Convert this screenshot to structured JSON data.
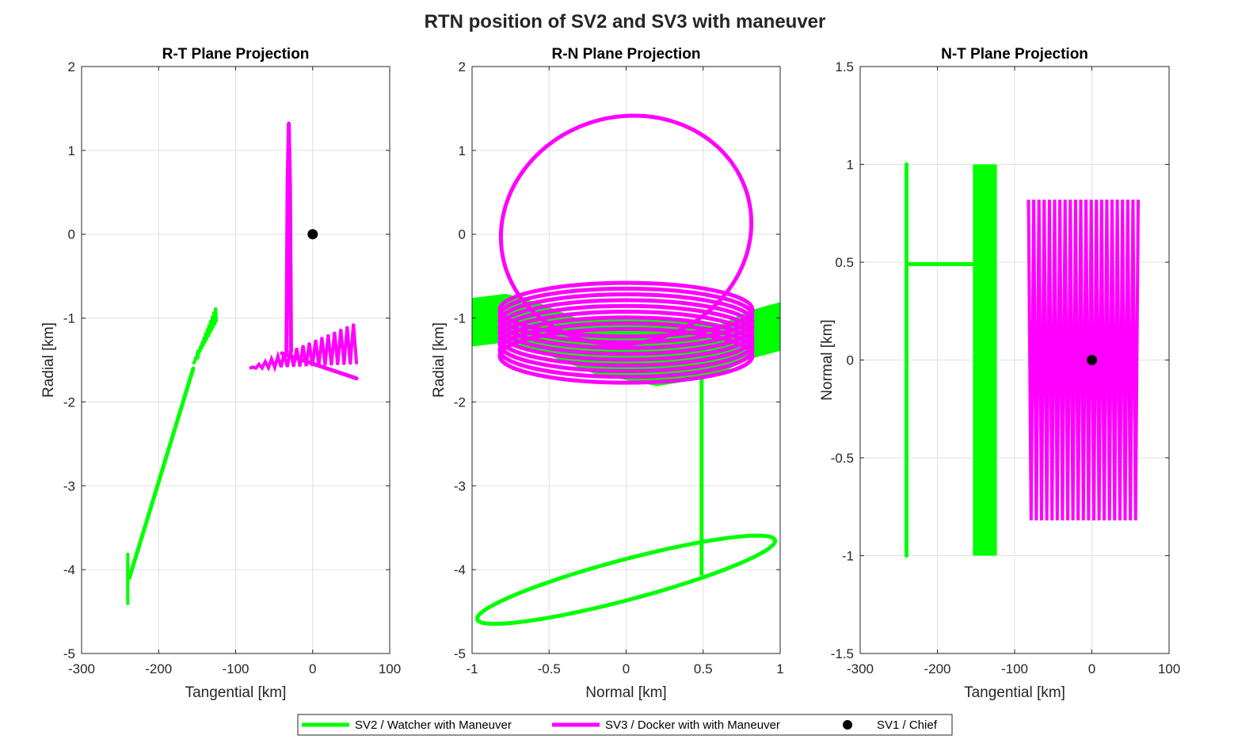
{
  "figure": {
    "title": "RTN position of SV2 and SV3 with maneuver"
  },
  "colors": {
    "sv2": "#00ff00",
    "sv3": "#ff00ff",
    "sv1": "#000000",
    "grid": "#e0e0e0",
    "axis": "#262626"
  },
  "legend": {
    "placement": "bottom-center",
    "entries": [
      {
        "name": "SV2 / Watcher with Maneuver",
        "series": "sv2",
        "marker": "line"
      },
      {
        "name": "SV3 / Docker with with Maneuver",
        "series": "sv3",
        "marker": "line"
      },
      {
        "name": "SV1 / Chief",
        "series": "sv1",
        "marker": "dot"
      }
    ]
  },
  "chart_data": [
    {
      "type": "line",
      "title": "R-T Plane Projection",
      "xlabel": "Tangential [km]",
      "ylabel": "Radial [km]",
      "xlim": [
        -300,
        100
      ],
      "ylim": [
        -5,
        2
      ],
      "grid": true,
      "xticks": [
        -300,
        -200,
        -100,
        0,
        100
      ],
      "yticks": [
        -5,
        -4,
        -3,
        -2,
        -1,
        0,
        1,
        2
      ],
      "xtick_labels": [
        "-300",
        "-200",
        "-100",
        "0",
        "100"
      ],
      "ytick_labels": [
        "-5",
        "-4",
        "-3",
        "-2",
        "-1",
        "0",
        "1",
        "2"
      ],
      "series": [
        {
          "key": "sv2",
          "style": "zigzag",
          "points": [
            [
              -240,
              -4.42
            ],
            [
              -240,
              -3.8
            ]
          ],
          "amp": [
            0,
            0.05
          ],
          "cycles": 6
        },
        {
          "key": "sv2",
          "style": "line",
          "points": [
            [
              -238,
              -4.1
            ],
            [
              -155,
              -1.6
            ]
          ]
        },
        {
          "key": "sv2",
          "style": "zigzag",
          "points": [
            [
              -155,
              -1.55
            ],
            [
              -125,
              -1.05
            ]
          ],
          "amp": [
            0,
            0.2
          ],
          "cycles": 14
        },
        {
          "key": "sv3",
          "style": "zigzag",
          "points": [
            [
              -82,
              -1.6
            ],
            [
              57,
              -1.55
            ]
          ],
          "amp": [
            0,
            0.5
          ],
          "cycles": 17
        },
        {
          "key": "sv3",
          "style": "polyline",
          "points": [
            [
              -34,
              -1.4
            ],
            [
              -32.5,
              0.6
            ],
            [
              -31,
              1.32
            ],
            [
              -29.5,
              0.6
            ],
            [
              -28,
              -1.4
            ]
          ]
        },
        {
          "key": "sv3",
          "style": "line",
          "points": [
            [
              -40,
              -1.42
            ],
            [
              57,
              -1.72
            ]
          ]
        },
        {
          "key": "sv1",
          "style": "dot",
          "points": [
            [
              0,
              0
            ]
          ]
        }
      ]
    },
    {
      "type": "line",
      "title": "R-N Plane Projection",
      "xlabel": "Normal [km]",
      "ylabel": "Radial [km]",
      "xlim": [
        -1,
        1
      ],
      "ylim": [
        -5,
        2
      ],
      "grid": true,
      "xticks": [
        -1,
        -0.5,
        0,
        0.5,
        1
      ],
      "yticks": [
        -5,
        -4,
        -3,
        -2,
        -1,
        0,
        1,
        2
      ],
      "xtick_labels": [
        "-1",
        "-0.5",
        "0",
        "0.5",
        "1"
      ],
      "ytick_labels": [
        "-5",
        "-4",
        "-3",
        "-2",
        "-1",
        "0",
        "1",
        "2"
      ],
      "series": [
        {
          "key": "sv2",
          "style": "ellipse",
          "center": [
            0.0,
            -4.12
          ],
          "radii": [
            1.0,
            0.24
          ],
          "tilt": -0.26
        },
        {
          "key": "sv2",
          "style": "line",
          "points": [
            [
              0.49,
              -4.05
            ],
            [
              0.49,
              -1.6
            ]
          ]
        },
        {
          "key": "sv2",
          "style": "band",
          "points": [
            [
              -1.0,
              -1.05
            ],
            [
              -0.78,
              -1.0
            ],
            [
              -0.55,
              -1.12
            ],
            [
              -0.2,
              -1.38
            ],
            [
              0.2,
              -1.52
            ],
            [
              0.55,
              -1.42
            ],
            [
              0.8,
              -1.2
            ],
            [
              1.0,
              -1.1
            ]
          ],
          "half": 0.28
        },
        {
          "key": "sv2",
          "style": "ellipsefill",
          "center": [
            0.0,
            -1.2
          ],
          "radii": [
            0.72,
            0.2
          ],
          "tilt": 0
        },
        {
          "key": "sv3",
          "style": "ellipse",
          "center": [
            0.0,
            0.05
          ],
          "radii": [
            0.82,
            1.35
          ],
          "tilt": -0.3
        },
        {
          "key": "sv3",
          "style": "rings",
          "center": [
            0.0,
            -1.2
          ],
          "radii": [
            0.82,
            0.32
          ],
          "dy": [
            -0.25,
            0.3
          ],
          "count": 9
        }
      ]
    },
    {
      "type": "line",
      "title": "N-T Plane Projection",
      "xlabel": "Tangential [km]",
      "ylabel": "Normal [km]",
      "xlim": [
        -300,
        100
      ],
      "ylim": [
        -1.5,
        1.5
      ],
      "grid": true,
      "xticks": [
        -300,
        -200,
        -100,
        0,
        100
      ],
      "yticks": [
        -1.5,
        -1,
        -0.5,
        0,
        0.5,
        1,
        1.5
      ],
      "xtick_labels": [
        "-300",
        "-200",
        "-100",
        "0",
        "100"
      ],
      "ytick_labels": [
        "-1.5",
        "-1",
        "-0.5",
        "0",
        "0.5",
        "1",
        "1.5"
      ],
      "series": [
        {
          "key": "sv2",
          "style": "line",
          "points": [
            [
              -240,
              -1.0
            ],
            [
              -240,
              1.0
            ]
          ]
        },
        {
          "key": "sv2",
          "style": "line",
          "points": [
            [
              -240,
              0.49
            ],
            [
              -155,
              0.49
            ]
          ]
        },
        {
          "key": "sv2",
          "style": "block",
          "points": [
            [
              -154,
              -1.0
            ],
            [
              -123,
              1.0
            ]
          ]
        },
        {
          "key": "sv3",
          "style": "zigzag",
          "points": [
            [
              -82,
              0.0
            ],
            [
              60,
              0.0
            ]
          ],
          "amp": [
            0.82,
            0.82
          ],
          "cycles": 21
        },
        {
          "key": "sv1",
          "style": "dot",
          "points": [
            [
              0,
              0
            ]
          ]
        }
      ]
    }
  ]
}
